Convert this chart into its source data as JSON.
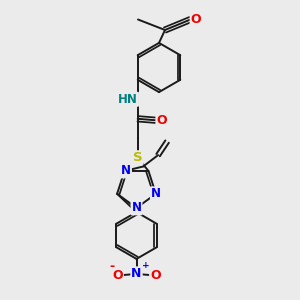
{
  "bg_color": "#ebebeb",
  "bond_color": "#1a1a1a",
  "bond_width": 1.4,
  "atom_colors": {
    "N": "#0000ee",
    "O": "#ee0000",
    "S": "#bbbb00",
    "H": "#008080",
    "C": "#1a1a1a"
  },
  "figsize": [
    3.0,
    3.0
  ],
  "dpi": 100
}
